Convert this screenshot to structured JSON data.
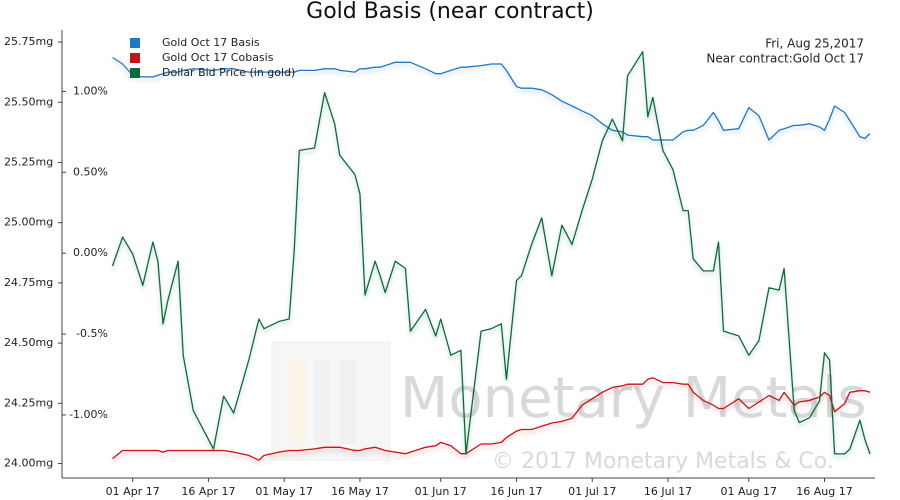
{
  "chart_data": {
    "type": "line",
    "title": "Gold Basis (near contract)",
    "annotations": [
      "Fri, Aug 25,2017",
      "Near contract:Gold Oct 17"
    ],
    "watermark": [
      "Monetary Metals",
      "© 2017 Monetary Metals & Co."
    ],
    "legend": "top-left",
    "x": [
      "2017-03-28",
      "2017-03-30",
      "2017-04-01",
      "2017-04-03",
      "2017-04-05",
      "2017-04-06",
      "2017-04-07",
      "2017-04-08",
      "2017-04-10",
      "2017-04-11",
      "2017-04-13",
      "2017-04-17",
      "2017-04-19",
      "2017-04-21",
      "2017-04-24",
      "2017-04-26",
      "2017-04-27",
      "2017-04-30",
      "2017-05-02",
      "2017-05-03",
      "2017-05-04",
      "2017-05-07",
      "2017-05-09",
      "2017-05-11",
      "2017-05-12",
      "2017-05-15",
      "2017-05-16",
      "2017-05-17",
      "2017-05-19",
      "2017-05-20",
      "2017-05-21",
      "2017-05-23",
      "2017-05-25",
      "2017-05-26",
      "2017-05-29",
      "2017-05-31",
      "2017-06-01",
      "2017-06-03",
      "2017-06-05",
      "2017-06-06",
      "2017-06-09",
      "2017-06-11",
      "2017-06-13",
      "2017-06-14",
      "2017-06-16",
      "2017-06-17",
      "2017-06-19",
      "2017-06-21",
      "2017-06-23",
      "2017-06-25",
      "2017-06-27",
      "2017-06-29",
      "2017-07-01",
      "2017-07-03",
      "2017-07-05",
      "2017-07-07",
      "2017-07-08",
      "2017-07-11",
      "2017-07-12",
      "2017-07-13",
      "2017-07-15",
      "2017-07-17",
      "2017-07-19",
      "2017-07-20",
      "2017-07-21",
      "2017-07-23",
      "2017-07-25",
      "2017-07-26",
      "2017-07-27",
      "2017-07-30",
      "2017-08-01",
      "2017-08-03",
      "2017-08-05",
      "2017-08-07",
      "2017-08-08",
      "2017-08-10",
      "2017-08-11",
      "2017-08-13",
      "2017-08-15",
      "2017-08-16",
      "2017-08-17",
      "2017-08-18",
      "2017-08-20",
      "2017-08-21",
      "2017-08-23",
      "2017-08-24",
      "2017-08-25"
    ],
    "xlim": [
      "2017-03-18",
      "2017-08-26"
    ],
    "xticks": [
      {
        "value": "2017-04-01",
        "label": "01 Apr 17"
      },
      {
        "value": "2017-04-16",
        "label": "16 Apr 17"
      },
      {
        "value": "2017-05-01",
        "label": "01 May 17"
      },
      {
        "value": "2017-05-16",
        "label": "16 May 17"
      },
      {
        "value": "2017-06-01",
        "label": "01 Jun 17"
      },
      {
        "value": "2017-06-16",
        "label": "16 Jun 17"
      },
      {
        "value": "2017-07-01",
        "label": "01 Jul 17"
      },
      {
        "value": "2017-07-16",
        "label": "16 Jul 17"
      },
      {
        "value": "2017-08-01",
        "label": "01 Aug 17"
      },
      {
        "value": "2017-08-16",
        "label": "16 Aug 17"
      }
    ],
    "ylim": [
      23.94,
      25.8
    ],
    "yticks": [
      {
        "value": 24.0,
        "label": "24.00mg"
      },
      {
        "value": 24.25,
        "label": "24.25mg"
      },
      {
        "value": 24.5,
        "label": "24.50mg"
      },
      {
        "value": 24.75,
        "label": "24.75mg"
      },
      {
        "value": 25.0,
        "label": "25.00mg"
      },
      {
        "value": 25.25,
        "label": "25.25mg"
      },
      {
        "value": 25.5,
        "label": "25.50mg"
      },
      {
        "value": 25.75,
        "label": "25.75mg"
      }
    ],
    "y2lim": [
      -1.39,
      1.38
    ],
    "y2ticks": [
      {
        "value": -1.0,
        "label": "-1.00%"
      },
      {
        "value": -0.5,
        "label": "-0.5%"
      },
      {
        "value": 0,
        "label": "0.00%"
      },
      {
        "value": 0.5,
        "label": "0.50%"
      },
      {
        "value": 1.0,
        "label": "1.00%"
      }
    ],
    "series": [
      {
        "name": "Gold Oct 17 Basis",
        "color": "#1f77c8",
        "axis": "y2",
        "values": [
          1.21,
          1.17,
          1.1,
          1.09,
          1.09,
          1.1,
          1.11,
          1.12,
          1.12,
          1.13,
          1.14,
          1.13,
          1.14,
          1.14,
          1.12,
          1.12,
          1.12,
          1.12,
          1.12,
          1.12,
          1.13,
          1.13,
          1.14,
          1.14,
          1.13,
          1.12,
          1.14,
          1.14,
          1.15,
          1.15,
          1.16,
          1.18,
          1.18,
          1.18,
          1.14,
          1.11,
          1.11,
          1.13,
          1.15,
          1.15,
          1.16,
          1.17,
          1.17,
          1.13,
          1.03,
          1.02,
          1.02,
          1.01,
          0.98,
          0.94,
          0.91,
          0.88,
          0.85,
          0.8,
          0.76,
          0.75,
          0.73,
          0.72,
          0.72,
          0.7,
          0.7,
          0.7,
          0.75,
          0.76,
          0.76,
          0.79,
          0.87,
          0.82,
          0.76,
          0.77,
          0.9,
          0.85,
          0.7,
          0.76,
          0.77,
          0.79,
          0.79,
          0.8,
          0.78,
          0.76,
          0.83,
          0.91,
          0.87,
          0.82,
          0.72,
          0.71,
          0.74
        ]
      },
      {
        "name": "Gold Oct 17 Cobasis",
        "color": "#c81414",
        "axis": "y2",
        "values": [
          -1.27,
          -1.22,
          -1.22,
          -1.22,
          -1.22,
          -1.22,
          -1.23,
          -1.22,
          -1.22,
          -1.22,
          -1.22,
          -1.22,
          -1.22,
          -1.23,
          -1.25,
          -1.28,
          -1.25,
          -1.23,
          -1.22,
          -1.22,
          -1.22,
          -1.21,
          -1.2,
          -1.2,
          -1.2,
          -1.22,
          -1.22,
          -1.21,
          -1.2,
          -1.21,
          -1.22,
          -1.23,
          -1.24,
          -1.23,
          -1.2,
          -1.19,
          -1.17,
          -1.19,
          -1.24,
          -1.24,
          -1.18,
          -1.18,
          -1.17,
          -1.14,
          -1.1,
          -1.09,
          -1.09,
          -1.07,
          -1.05,
          -1.04,
          -1.02,
          -0.94,
          -0.9,
          -0.86,
          -0.83,
          -0.82,
          -0.81,
          -0.81,
          -0.78,
          -0.77,
          -0.8,
          -0.8,
          -0.81,
          -0.81,
          -0.86,
          -0.91,
          -0.94,
          -0.96,
          -0.96,
          -0.9,
          -0.96,
          -0.92,
          -0.88,
          -0.91,
          -0.86,
          -0.94,
          -0.92,
          -0.91,
          -0.89,
          -0.86,
          -0.88,
          -0.98,
          -0.93,
          -0.86,
          -0.85,
          -0.85,
          -0.86
        ]
      },
      {
        "name": "Dollar Bid Price (in gold)",
        "color": "#0d6b3a",
        "axis": "y",
        "values": [
          24.82,
          24.94,
          24.87,
          24.74,
          24.92,
          24.84,
          24.58,
          24.68,
          24.84,
          24.45,
          24.22,
          24.06,
          24.28,
          24.21,
          24.43,
          24.6,
          24.56,
          24.59,
          24.6,
          24.89,
          25.3,
          25.31,
          25.54,
          25.41,
          25.28,
          25.2,
          25.12,
          24.7,
          24.84,
          24.78,
          24.71,
          24.84,
          24.81,
          24.55,
          24.64,
          24.53,
          24.6,
          24.45,
          24.47,
          24.04,
          24.55,
          24.56,
          24.58,
          24.35,
          24.76,
          24.78,
          24.91,
          25.02,
          24.78,
          24.99,
          24.91,
          25.05,
          25.18,
          25.34,
          25.43,
          25.34,
          25.61,
          25.71,
          25.44,
          25.52,
          25.3,
          25.22,
          25.05,
          25.05,
          24.85,
          24.8,
          24.8,
          24.92,
          24.55,
          24.53,
          24.45,
          24.51,
          24.73,
          24.72,
          24.81,
          24.22,
          24.17,
          24.19,
          24.26,
          24.46,
          24.43,
          24.04,
          24.04,
          24.06,
          24.18,
          24.1,
          24.04
        ]
      }
    ]
  }
}
